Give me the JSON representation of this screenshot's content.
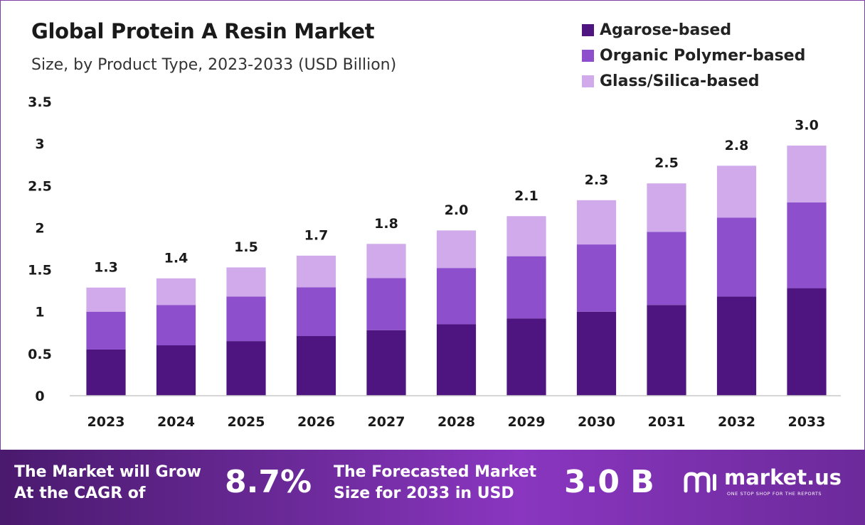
{
  "header": {
    "title": "Global Protein A Resin Market",
    "subtitle": "Size, by Product Type, 2023-2033 (USD Billion)"
  },
  "colors": {
    "agarose": "#4e1580",
    "organic": "#8d4fcc",
    "glass": "#d0aaea",
    "axis": "#c8c8c8"
  },
  "chart_data": {
    "type": "bar",
    "stacked": true,
    "title": "Global Protein A Resin Market",
    "subtitle": "Size, by Product Type, 2023-2033 (USD Billion)",
    "categories": [
      "2023",
      "2024",
      "2025",
      "2026",
      "2027",
      "2028",
      "2029",
      "2030",
      "2031",
      "2032",
      "2033"
    ],
    "series": [
      {
        "name": "Agarose-based",
        "values": [
          0.55,
          0.6,
          0.65,
          0.71,
          0.78,
          0.85,
          0.92,
          1.0,
          1.08,
          1.18,
          1.28
        ]
      },
      {
        "name": "Organic Polymer-based",
        "values": [
          0.45,
          0.48,
          0.53,
          0.58,
          0.62,
          0.67,
          0.74,
          0.8,
          0.87,
          0.94,
          1.02
        ]
      },
      {
        "name": "Glass/Silica-based",
        "values": [
          0.29,
          0.32,
          0.35,
          0.38,
          0.41,
          0.45,
          0.48,
          0.53,
          0.58,
          0.62,
          0.68
        ]
      }
    ],
    "totals": [
      "1.3",
      "1.4",
      "1.5",
      "1.7",
      "1.8",
      "2.0",
      "2.1",
      "2.3",
      "2.5",
      "2.8",
      "3.0"
    ],
    "yticks": [
      "0",
      "0.5",
      "1",
      "1.5",
      "2",
      "2.5",
      "3",
      "3.5"
    ],
    "ylim": [
      0,
      3.5
    ],
    "grid": false,
    "legend_position": "top-right"
  },
  "footer": {
    "cagr_text_line1": "The Market will Grow",
    "cagr_text_line2": "At the CAGR of",
    "cagr_value": "8.7%",
    "forecast_text_line1": "The Forecasted Market",
    "forecast_text_line2": "Size for 2033 in USD",
    "forecast_value": "3.0 B",
    "logo_name": "market.us",
    "logo_tagline": "ONE STOP SHOP FOR THE REPORTS"
  }
}
